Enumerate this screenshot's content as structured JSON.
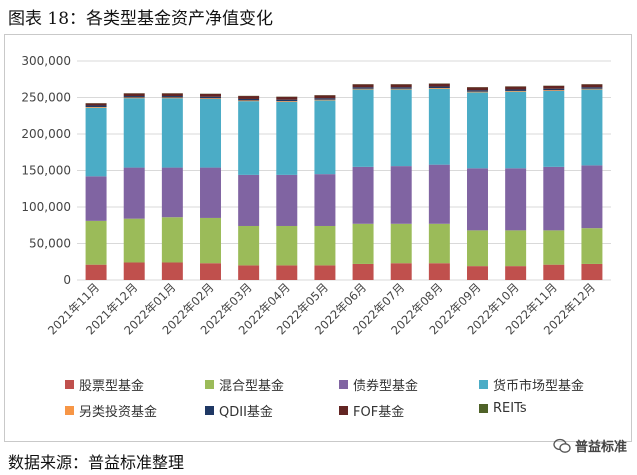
{
  "figure": {
    "title": "图表 18：各类型基金资产净值变化",
    "source": "数据来源：普益标准整理",
    "watermark": "普益标准"
  },
  "chart_data": {
    "type": "bar",
    "stacked": true,
    "categories": [
      "2021年11月",
      "2021年12月",
      "2022年01月",
      "2022年02月",
      "2022年03月",
      "2022年04月",
      "2022年05月",
      "2022年06月",
      "2022年07月",
      "2022年08月",
      "2022年09月",
      "2022年10月",
      "2022年11月",
      "2022年12月"
    ],
    "ylim": [
      0,
      300000
    ],
    "yticks": [
      "0",
      "50,000",
      "100,000",
      "150,000",
      "200,000",
      "250,000",
      "300,000"
    ],
    "ytick_values": [
      0,
      50000,
      100000,
      150000,
      200000,
      250000,
      300000
    ],
    "grid": "horizontal",
    "legend_position": "bottom",
    "series": [
      {
        "name": "股票型基金",
        "color": "#c0504d",
        "values": [
          21000,
          24000,
          24000,
          23000,
          20000,
          20000,
          20000,
          22000,
          23000,
          23000,
          19000,
          19000,
          21000,
          22000
        ]
      },
      {
        "name": "混合型基金",
        "color": "#9bbb59",
        "values": [
          60000,
          60000,
          62000,
          62000,
          54000,
          54000,
          54000,
          55000,
          54000,
          54000,
          49000,
          49000,
          47000,
          49000
        ]
      },
      {
        "name": "债券型基金",
        "color": "#8064a2",
        "values": [
          61000,
          70000,
          68000,
          69000,
          70000,
          70000,
          71000,
          78000,
          79000,
          81000,
          85000,
          85000,
          87000,
          86000
        ]
      },
      {
        "name": "货币市场型基金",
        "color": "#4bacc6",
        "values": [
          94000,
          95000,
          95000,
          94000,
          101000,
          100000,
          101000,
          106000,
          105000,
          104000,
          104000,
          105000,
          104000,
          104000
        ]
      },
      {
        "name": "另类投资基金",
        "color": "#f79646",
        "values": [
          1000,
          1000,
          1000,
          1000,
          1000,
          1000,
          1000,
          1000,
          1000,
          1000,
          1000,
          1000,
          1000,
          1000
        ]
      },
      {
        "name": "QDII基金",
        "color": "#1f3864",
        "values": [
          2000,
          2000,
          2000,
          2000,
          2000,
          2000,
          2000,
          2000,
          2000,
          2000,
          2000,
          2000,
          2000,
          2000
        ]
      },
      {
        "name": "FOF基金",
        "color": "#632523",
        "values": [
          3000,
          3500,
          3500,
          4000,
          4000,
          4000,
          4000,
          4000,
          4000,
          4000,
          4000,
          4000,
          4000,
          4000
        ]
      },
      {
        "name": "REITs",
        "color": "#4f6228",
        "values": [
          300,
          300,
          300,
          300,
          300,
          300,
          300,
          300,
          300,
          300,
          300,
          300,
          300,
          300
        ]
      }
    ]
  }
}
